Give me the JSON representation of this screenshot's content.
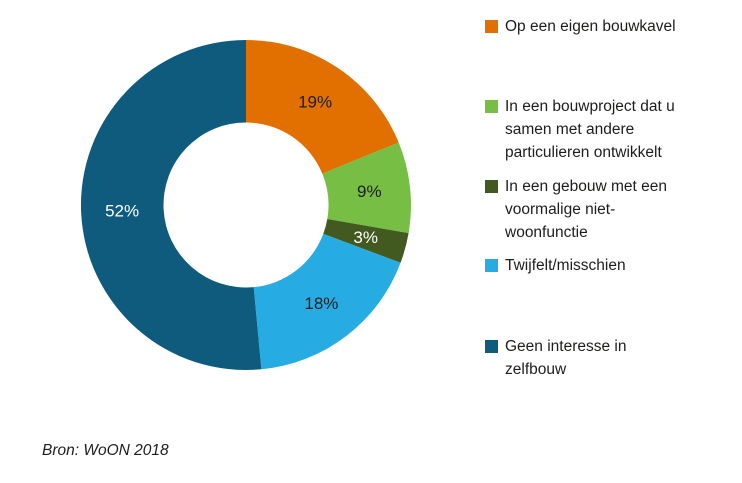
{
  "chart_data": {
    "type": "pie",
    "donut": true,
    "title": "",
    "start_angle_deg": 0,
    "direction": "clockwise",
    "legend_position": "right",
    "source": "Bron: WoON 2018",
    "slices": [
      {
        "label": "Op een eigen bouwkavel",
        "value": 19,
        "display": "19%",
        "color": "#e17000",
        "label_color": "#1d1d1b"
      },
      {
        "label": "In een bouwproject dat u samen met andere particulieren ontwikkelt",
        "value": 9,
        "display": "9%",
        "color": "#77be44",
        "label_color": "#1d1d1b"
      },
      {
        "label": "In een gebouw met een voormalige niet-woonfunctie",
        "value": 3,
        "display": "3%",
        "color": "#42591f",
        "label_color": "#ffffff"
      },
      {
        "label": "Twijfelt/misschien",
        "value": 18,
        "display": "18%",
        "color": "#26ace2",
        "label_color": "#1d1d1b"
      },
      {
        "label": "Geen interesse in zelfbouw",
        "value": 52,
        "display": "52%",
        "color": "#0f5b7d",
        "label_color": "#ffffff"
      }
    ]
  },
  "legend": {
    "items": [
      {
        "lines": [
          "Op een eigen bouwkavel"
        ],
        "color": "#e17000"
      },
      {
        "lines": [
          "In een bouwproject dat u",
          "samen met andere",
          "particulieren ontwikkelt"
        ],
        "color": "#77be44"
      },
      {
        "lines": [
          "In een gebouw met een",
          "voormalige niet-",
          "woonfunctie"
        ],
        "color": "#42591f"
      },
      {
        "lines": [
          "Twijfelt/misschien"
        ],
        "color": "#26ace2"
      },
      {
        "lines": [
          "Geen interesse in",
          "zelfbouw"
        ],
        "color": "#0f5b7d"
      }
    ]
  },
  "footer": {
    "source": "Bron: WoON 2018"
  }
}
